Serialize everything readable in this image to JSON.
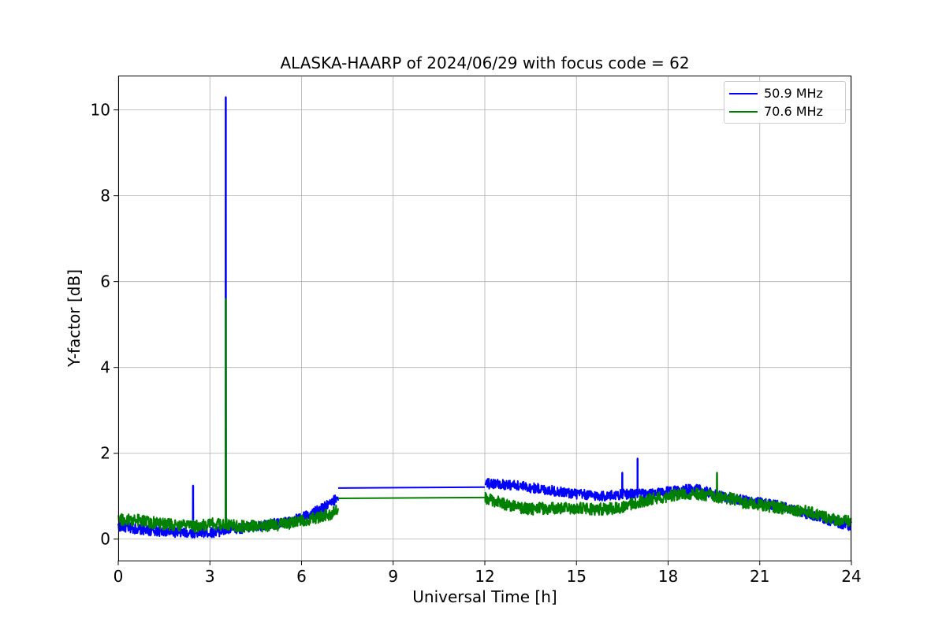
{
  "chart_data": {
    "type": "line",
    "title": "ALASKA-HAARP of 2024/06/29 with focus code = 62",
    "xlabel": "Universal Time [h]",
    "ylabel": "Y-factor [dB]",
    "xlim": [
      0,
      24
    ],
    "ylim": [
      -0.5,
      10.8
    ],
    "xticks": [
      0,
      3,
      6,
      9,
      12,
      15,
      18,
      21,
      24
    ],
    "yticks": [
      0,
      2,
      4,
      6,
      8,
      10
    ],
    "grid": true,
    "legend_position": "top-right",
    "series": [
      {
        "name": "50.9 MHz",
        "color": "#0000ff",
        "noise_amplitude": 0.12,
        "gaps": [
          [
            7.2,
            12.0
          ]
        ],
        "x": [
          0,
          0.5,
          1,
          1.5,
          2,
          2.5,
          3,
          3.5,
          4,
          4.5,
          5,
          5.5,
          6,
          6.5,
          7,
          7.2,
          12,
          12.5,
          13,
          13.5,
          14,
          14.5,
          15,
          15.5,
          16,
          16.5,
          17,
          17.5,
          18,
          18.5,
          19,
          19.5,
          20,
          20.5,
          21,
          21.5,
          22,
          22.5,
          23,
          23.5,
          24
        ],
        "y": [
          0.3,
          0.25,
          0.2,
          0.18,
          0.15,
          0.15,
          0.15,
          0.2,
          0.25,
          0.3,
          0.35,
          0.4,
          0.5,
          0.65,
          0.85,
          1.0,
          1.3,
          1.28,
          1.25,
          1.2,
          1.15,
          1.1,
          1.05,
          1.02,
          1.0,
          1.05,
          1.05,
          1.05,
          1.1,
          1.15,
          1.15,
          1.05,
          0.95,
          0.9,
          0.85,
          0.8,
          0.7,
          0.6,
          0.5,
          0.4,
          0.3
        ],
        "spikes": [
          {
            "x": 2.45,
            "y": 1.25
          },
          {
            "x": 3.52,
            "y": 10.3
          },
          {
            "x": 16.5,
            "y": 1.55
          },
          {
            "x": 17.0,
            "y": 1.88
          }
        ],
        "bridge": [
          {
            "x": 7.2,
            "y": 1.19
          },
          {
            "x": 12.0,
            "y": 1.21
          }
        ]
      },
      {
        "name": "70.6 MHz",
        "color": "#008000",
        "noise_amplitude": 0.14,
        "gaps": [
          [
            7.2,
            12.0
          ]
        ],
        "x": [
          0,
          0.5,
          1,
          1.5,
          2,
          2.5,
          3,
          3.5,
          4,
          4.5,
          5,
          5.5,
          6,
          6.5,
          7,
          7.2,
          12,
          12.5,
          13,
          13.5,
          14,
          14.5,
          15,
          15.5,
          16,
          16.5,
          17,
          17.5,
          18,
          18.5,
          19,
          19.5,
          20,
          20.5,
          21,
          21.5,
          22,
          22.5,
          23,
          23.5,
          24
        ],
        "y": [
          0.45,
          0.45,
          0.4,
          0.35,
          0.32,
          0.3,
          0.35,
          0.35,
          0.3,
          0.3,
          0.32,
          0.35,
          0.42,
          0.5,
          0.6,
          0.7,
          0.95,
          0.85,
          0.75,
          0.7,
          0.72,
          0.72,
          0.72,
          0.7,
          0.7,
          0.75,
          0.85,
          0.95,
          1.0,
          1.05,
          1.05,
          1.0,
          0.95,
          0.85,
          0.8,
          0.75,
          0.7,
          0.65,
          0.55,
          0.45,
          0.4
        ],
        "spikes": [
          {
            "x": 3.52,
            "y": 5.6
          },
          {
            "x": 19.6,
            "y": 1.55
          }
        ],
        "bridge": [
          {
            "x": 7.2,
            "y": 0.95
          },
          {
            "x": 12.0,
            "y": 0.97
          }
        ]
      }
    ]
  }
}
